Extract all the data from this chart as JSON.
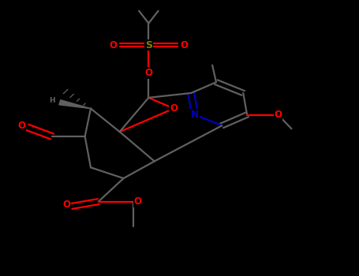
{
  "bg": "#000000",
  "bc": "#606060",
  "sc": "#808000",
  "oc": "#ff0000",
  "nc": "#0000bb",
  "cc": "#606060",
  "lw": 1.6,
  "dbo": 0.008,
  "fs": 8.5,
  "fig_w": 4.55,
  "fig_h": 3.5,
  "dpi": 100,
  "xlim": [
    0.0,
    1.0
  ],
  "ylim": [
    0.0,
    1.0
  ]
}
